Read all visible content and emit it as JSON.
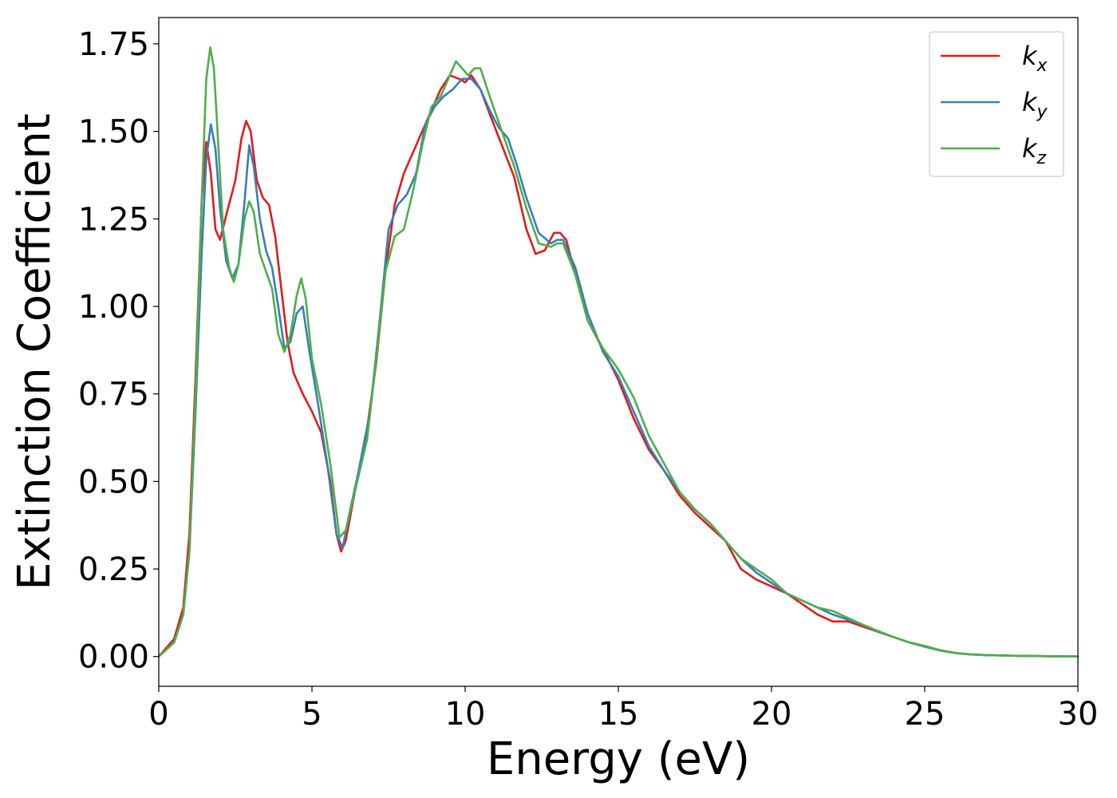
{
  "chart_data": {
    "type": "line",
    "title": "",
    "xlabel": "Energy (eV)",
    "ylabel": "Extinction Coefficient",
    "xlim": [
      0,
      30
    ],
    "ylim": [
      -0.085,
      1.825
    ],
    "xticks": [
      0,
      5,
      10,
      15,
      20,
      25,
      30
    ],
    "xtick_labels": [
      "0",
      "5",
      "10",
      "15",
      "20",
      "25",
      "30"
    ],
    "yticks": [
      0,
      0.25,
      0.5,
      0.75,
      1.0,
      1.25,
      1.5,
      1.75
    ],
    "ytick_labels": [
      "0.00",
      "0.25",
      "0.50",
      "0.75",
      "1.00",
      "1.25",
      "1.50",
      "1.75"
    ],
    "grid": false,
    "legend_position": "top-right",
    "series": [
      {
        "name": "k_x",
        "label_main": "k",
        "label_sub": "x",
        "color": "#e41a1c",
        "x": [
          0,
          0.5,
          0.8,
          1.0,
          1.2,
          1.4,
          1.55,
          1.7,
          1.85,
          2.0,
          2.2,
          2.5,
          2.7,
          2.85,
          3.0,
          3.2,
          3.4,
          3.6,
          3.8,
          4.0,
          4.2,
          4.4,
          4.7,
          5.0,
          5.3,
          5.6,
          5.8,
          5.95,
          6.1,
          6.4,
          6.8,
          7.1,
          7.4,
          7.7,
          8.0,
          8.4,
          8.8,
          9.2,
          9.5,
          9.8,
          10.0,
          10.2,
          10.5,
          10.8,
          11.2,
          11.6,
          12.0,
          12.3,
          12.6,
          12.9,
          13.1,
          13.3,
          13.6,
          14.0,
          14.3,
          14.6,
          15.0,
          15.5,
          16.0,
          16.5,
          17.0,
          17.5,
          18.0,
          18.5,
          19.0,
          19.5,
          20.0,
          20.5,
          21.0,
          21.5,
          22.0,
          22.5,
          23.0,
          23.5,
          24.0,
          24.5,
          25.0,
          25.5,
          26.0,
          26.5,
          27.0,
          28.0,
          29.0,
          30.0
        ],
        "y": [
          0.0,
          0.05,
          0.14,
          0.35,
          0.8,
          1.3,
          1.47,
          1.38,
          1.22,
          1.19,
          1.26,
          1.36,
          1.48,
          1.53,
          1.5,
          1.36,
          1.31,
          1.29,
          1.2,
          1.05,
          0.9,
          0.81,
          0.75,
          0.7,
          0.64,
          0.5,
          0.35,
          0.3,
          0.33,
          0.47,
          0.65,
          0.84,
          1.1,
          1.29,
          1.38,
          1.46,
          1.54,
          1.62,
          1.66,
          1.65,
          1.64,
          1.66,
          1.62,
          1.55,
          1.46,
          1.37,
          1.22,
          1.15,
          1.16,
          1.21,
          1.21,
          1.19,
          1.09,
          0.96,
          0.91,
          0.86,
          0.79,
          0.68,
          0.59,
          0.53,
          0.46,
          0.41,
          0.37,
          0.33,
          0.25,
          0.22,
          0.2,
          0.18,
          0.15,
          0.12,
          0.1,
          0.1,
          0.085,
          0.07,
          0.055,
          0.04,
          0.03,
          0.018,
          0.01,
          0.006,
          0.004,
          0.002,
          0.001,
          0.0
        ]
      },
      {
        "name": "k_y",
        "label_main": "k",
        "label_sub": "y",
        "color": "#377eb8",
        "x": [
          0,
          0.5,
          0.8,
          1.0,
          1.2,
          1.4,
          1.55,
          1.7,
          1.85,
          2.0,
          2.2,
          2.4,
          2.6,
          2.8,
          2.95,
          3.1,
          3.3,
          3.5,
          3.7,
          3.9,
          4.1,
          4.3,
          4.5,
          4.7,
          4.9,
          5.2,
          5.5,
          5.8,
          6.0,
          6.2,
          6.5,
          6.9,
          7.2,
          7.5,
          7.8,
          8.1,
          8.4,
          8.7,
          9.0,
          9.3,
          9.6,
          9.9,
          10.2,
          10.5,
          10.8,
          11.1,
          11.4,
          11.7,
          12.0,
          12.4,
          12.8,
          13.0,
          13.2,
          13.6,
          14.0,
          14.5,
          15.0,
          15.5,
          16.0,
          16.5,
          17.0,
          17.5,
          18.0,
          18.5,
          19.0,
          19.5,
          20.0,
          20.5,
          21.0,
          21.5,
          22.0,
          22.5,
          23.0,
          23.5,
          24.0,
          24.5,
          25.0,
          25.5,
          26.0,
          26.5,
          27.0,
          28.0,
          29.0,
          30.0
        ],
        "y": [
          0.0,
          0.04,
          0.12,
          0.3,
          0.7,
          1.15,
          1.42,
          1.52,
          1.45,
          1.28,
          1.13,
          1.08,
          1.12,
          1.3,
          1.46,
          1.4,
          1.25,
          1.16,
          1.11,
          1.0,
          0.88,
          0.9,
          0.98,
          1.0,
          0.88,
          0.72,
          0.55,
          0.35,
          0.31,
          0.4,
          0.52,
          0.7,
          0.95,
          1.22,
          1.29,
          1.32,
          1.38,
          1.52,
          1.57,
          1.6,
          1.62,
          1.65,
          1.65,
          1.62,
          1.56,
          1.51,
          1.48,
          1.4,
          1.31,
          1.21,
          1.18,
          1.19,
          1.19,
          1.11,
          0.98,
          0.87,
          0.8,
          0.7,
          0.6,
          0.53,
          0.47,
          0.42,
          0.38,
          0.33,
          0.28,
          0.24,
          0.21,
          0.18,
          0.16,
          0.14,
          0.12,
          0.105,
          0.09,
          0.07,
          0.055,
          0.04,
          0.028,
          0.017,
          0.01,
          0.006,
          0.004,
          0.002,
          0.001,
          0.0
        ]
      },
      {
        "name": "k_z",
        "label_main": "k",
        "label_sub": "z",
        "color": "#4daf4a",
        "x": [
          0,
          0.5,
          0.8,
          1.0,
          1.2,
          1.4,
          1.55,
          1.68,
          1.8,
          1.95,
          2.1,
          2.3,
          2.45,
          2.6,
          2.8,
          2.95,
          3.1,
          3.3,
          3.5,
          3.7,
          3.9,
          4.1,
          4.3,
          4.5,
          4.65,
          4.8,
          5.0,
          5.3,
          5.6,
          5.9,
          6.1,
          6.4,
          6.8,
          7.1,
          7.4,
          7.7,
          8.0,
          8.3,
          8.6,
          8.9,
          9.2,
          9.5,
          9.7,
          9.9,
          10.1,
          10.3,
          10.5,
          10.8,
          11.2,
          11.6,
          12.0,
          12.4,
          12.8,
          13.0,
          13.2,
          13.6,
          14.0,
          14.5,
          15.0,
          15.5,
          16.0,
          16.5,
          17.0,
          17.5,
          18.0,
          18.5,
          19.0,
          19.5,
          20.0,
          20.5,
          21.0,
          21.5,
          22.0,
          22.5,
          23.0,
          23.5,
          24.0,
          24.5,
          25.0,
          25.5,
          26.0,
          26.5,
          27.0,
          28.0,
          29.0,
          30.0
        ],
        "y": [
          0.0,
          0.04,
          0.12,
          0.3,
          0.75,
          1.3,
          1.65,
          1.74,
          1.68,
          1.45,
          1.22,
          1.11,
          1.07,
          1.12,
          1.25,
          1.3,
          1.27,
          1.15,
          1.1,
          1.05,
          0.92,
          0.87,
          0.92,
          1.03,
          1.08,
          1.02,
          0.85,
          0.72,
          0.55,
          0.34,
          0.36,
          0.47,
          0.62,
          0.85,
          1.1,
          1.2,
          1.22,
          1.33,
          1.46,
          1.57,
          1.6,
          1.66,
          1.7,
          1.68,
          1.66,
          1.68,
          1.68,
          1.6,
          1.5,
          1.4,
          1.28,
          1.18,
          1.17,
          1.18,
          1.18,
          1.09,
          0.96,
          0.88,
          0.82,
          0.74,
          0.63,
          0.55,
          0.47,
          0.42,
          0.38,
          0.33,
          0.28,
          0.25,
          0.22,
          0.18,
          0.16,
          0.14,
          0.13,
          0.11,
          0.09,
          0.072,
          0.055,
          0.04,
          0.03,
          0.018,
          0.01,
          0.006,
          0.004,
          0.002,
          0.001,
          0.0
        ]
      }
    ]
  }
}
